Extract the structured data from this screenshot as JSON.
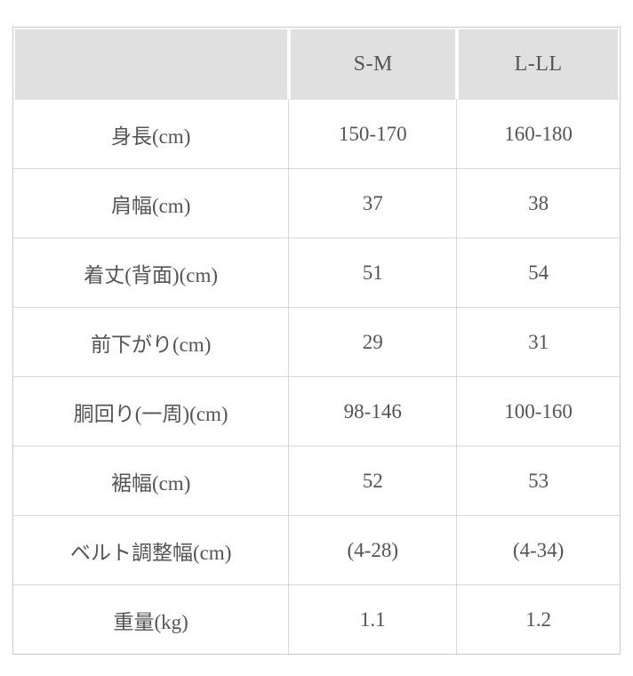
{
  "table": {
    "columns": [
      "",
      "S-M",
      "L-LL"
    ],
    "rows": [
      {
        "label": "身長(cm)",
        "values": [
          "150-170",
          "160-180"
        ]
      },
      {
        "label": "肩幅(cm)",
        "values": [
          "37",
          "38"
        ]
      },
      {
        "label": "着丈(背面)(cm)",
        "values": [
          "51",
          "54"
        ]
      },
      {
        "label": "前下がり(cm)",
        "values": [
          "29",
          "31"
        ]
      },
      {
        "label": "胴回り(一周)(cm)",
        "values": [
          "98-146",
          "100-160"
        ]
      },
      {
        "label": "裾幅(cm)",
        "values": [
          "52",
          "53"
        ]
      },
      {
        "label": "ベルト調整幅(cm)",
        "values": [
          "(4-28)",
          "(4-34)"
        ]
      },
      {
        "label": "重量(kg)",
        "values": [
          "1.1",
          "1.2"
        ]
      }
    ]
  },
  "colors": {
    "header_background": "#e0e0e0",
    "text": "#545454",
    "outer_border": "#c9c9c9",
    "inner_border": "#d9d9d9",
    "page_background": "#ffffff"
  }
}
